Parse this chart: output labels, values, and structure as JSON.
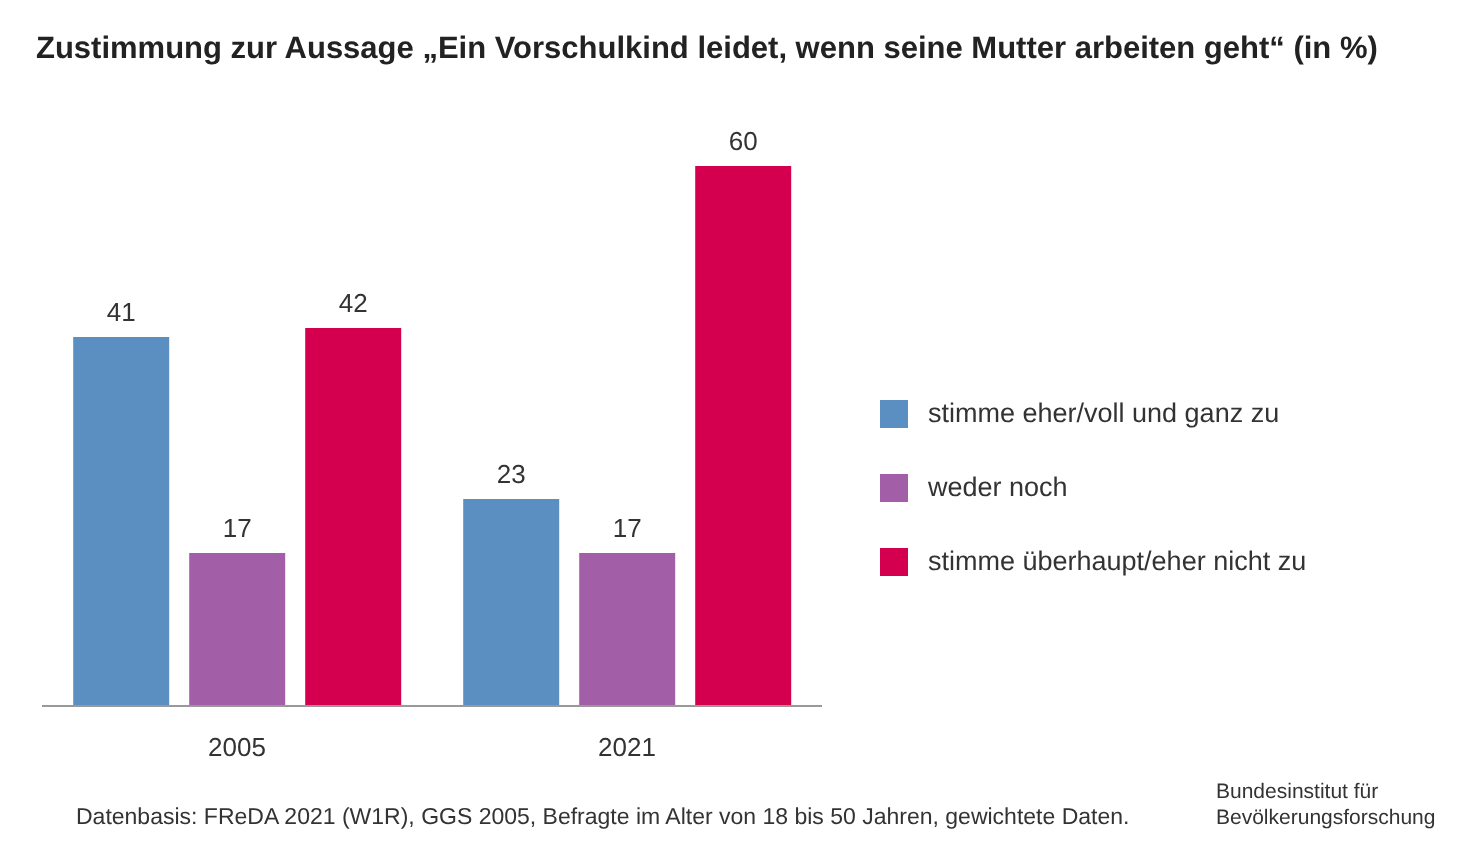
{
  "chart_data": {
    "type": "bar",
    "title": "Zustimmung zur Aussage „Ein Vorschulkind leidet, wenn seine Mutter arbeiten geht“ (in %)",
    "categories": [
      "2005",
      "2021"
    ],
    "series": [
      {
        "name": "stimme eher/voll und ganz zu",
        "color": "#5b8fc2",
        "values": [
          41,
          23
        ]
      },
      {
        "name": "weder noch",
        "color": "#a35ea8",
        "values": [
          17,
          17
        ]
      },
      {
        "name": "stimme überhaupt/eher nicht zu",
        "color": "#d4004f",
        "values": [
          42,
          60
        ]
      }
    ],
    "data_labels": true,
    "legend": "right",
    "grid": false,
    "annotations": [
      "Datenbasis: FReDA 2021 (W1R), GGS 2005, Befragte im Alter von 18 bis 50 Jahren, gewichtete Daten.",
      "Bundesinstitut für Bevölkerungsforschung"
    ]
  }
}
